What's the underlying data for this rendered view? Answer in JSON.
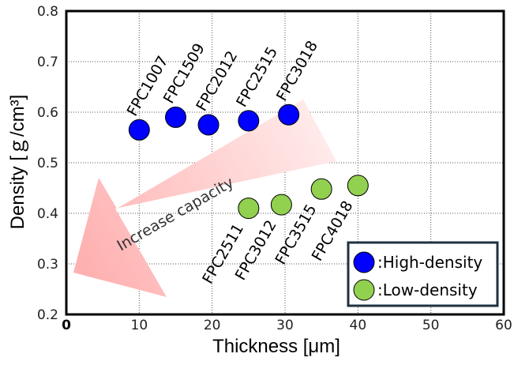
{
  "chart_data": {
    "type": "scatter",
    "xlabel": "Thickness [μm]",
    "ylabel": "Density [ｇ/cm³]",
    "xlim": [
      0,
      60
    ],
    "ylim": [
      0.2,
      0.8
    ],
    "x_ticks": [
      0,
      10,
      20,
      30,
      40,
      50,
      60
    ],
    "y_ticks": [
      0.2,
      0.3,
      0.4,
      0.5,
      0.6,
      0.7,
      0.8
    ],
    "grid": true,
    "series": [
      {
        "name": ":High-density",
        "color": "#0000ff",
        "points": [
          {
            "label": "FPC1007",
            "x": 10,
            "y": 0.565
          },
          {
            "label": "FPC1509",
            "x": 15,
            "y": 0.59
          },
          {
            "label": "FPC2012",
            "x": 19.5,
            "y": 0.575
          },
          {
            "label": "FPC2515",
            "x": 25,
            "y": 0.583
          },
          {
            "label": "FPC3018",
            "x": 30.5,
            "y": 0.595
          }
        ]
      },
      {
        "name": ":Low-density",
        "color": "#92d050",
        "points": [
          {
            "label": "FPC2511",
            "x": 25,
            "y": 0.41
          },
          {
            "label": "FPC3012",
            "x": 29.5,
            "y": 0.417
          },
          {
            "label": "FPC3515",
            "x": 35,
            "y": 0.448
          },
          {
            "label": "FPC4018",
            "x": 40,
            "y": 0.455
          }
        ]
      }
    ],
    "annotations": [
      {
        "text": "Increase capacity",
        "type": "arrow"
      }
    ],
    "legend_position": "bottom-right"
  }
}
